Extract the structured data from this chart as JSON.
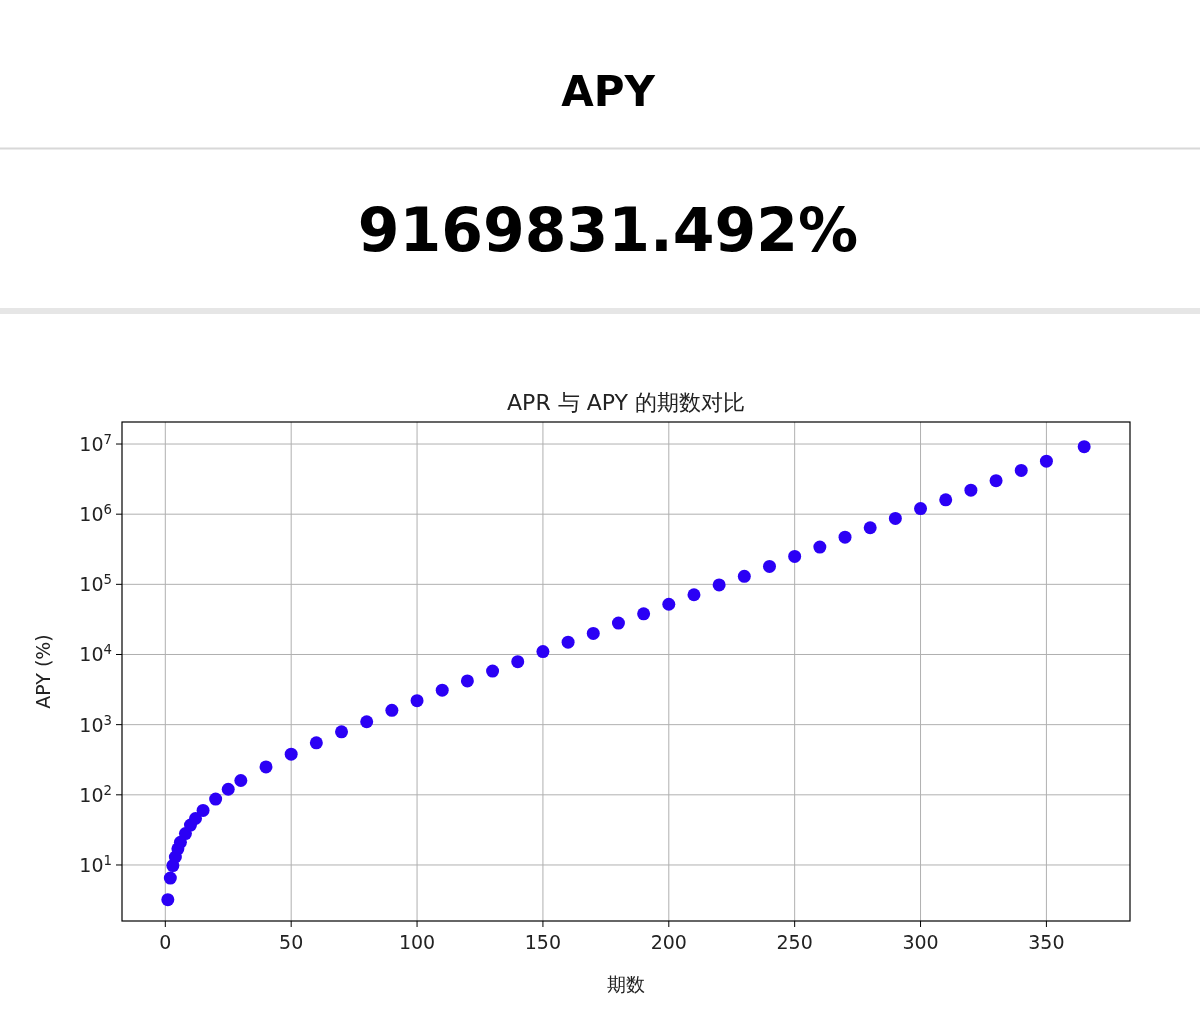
{
  "chart_data": [
    {
      "type": "other",
      "title": "APY",
      "subtitle": "9169831.492%"
    },
    {
      "type": "scatter",
      "title": "APR 与 APY 的期数对比",
      "xlabel": "期数",
      "ylabel": "APY (%)",
      "log": "y",
      "grid": true,
      "marker": "circle",
      "color": "#2b00f5",
      "x": [
        1,
        2,
        3,
        4,
        5,
        6,
        8,
        10,
        12,
        15,
        20,
        25,
        30,
        40,
        50,
        60,
        70,
        80,
        90,
        100,
        110,
        120,
        130,
        140,
        150,
        160,
        170,
        180,
        190,
        200,
        210,
        220,
        230,
        240,
        250,
        260,
        270,
        280,
        290,
        300,
        310,
        320,
        330,
        340,
        350,
        365
      ],
      "values": [
        3.2,
        6.5,
        9.8,
        13,
        17,
        21,
        28,
        37,
        46,
        60,
        87,
        120,
        160,
        250,
        380,
        550,
        790,
        1100,
        1600,
        2200,
        3100,
        4200,
        5800,
        7900,
        11000,
        15000,
        20000,
        28000,
        38000,
        52000,
        71000,
        98000,
        130000,
        180000,
        250000,
        340000,
        470000,
        640000,
        870000,
        1200000,
        1600000,
        2200000,
        3000000,
        4200000,
        5700000,
        9169831
      ],
      "xlim": [
        -17.2,
        383.2
      ],
      "xticks": [
        0,
        50,
        100,
        150,
        200,
        250,
        300,
        350
      ],
      "ylim": [
        1.59,
        20600000
      ],
      "yticks": [
        {
          "value": 10,
          "label": "10$^{1}$"
        },
        {
          "value": 100,
          "label": "10$^{2}$"
        },
        {
          "value": 1000,
          "label": "10$^{3}$"
        },
        {
          "value": 10000,
          "label": "10$^{4}$"
        },
        {
          "value": 100000,
          "label": "10$^{5}$"
        },
        {
          "value": 1000000,
          "label": "10$^{6}$"
        },
        {
          "value": 10000000,
          "label": "10$^{7}$"
        }
      ]
    }
  ]
}
